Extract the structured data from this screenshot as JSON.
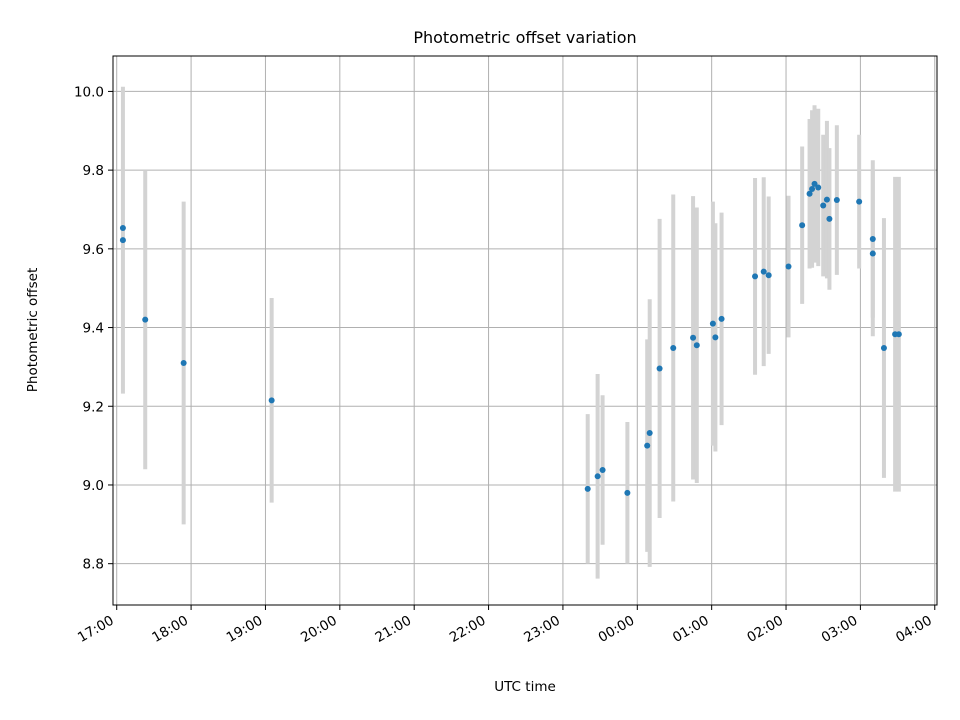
{
  "chart_data": {
    "type": "scatter",
    "title": "Photometric offset variation",
    "xlabel": "UTC time",
    "ylabel": "Photometric offset",
    "x_ticks": [
      "17:00",
      "18:00",
      "19:00",
      "20:00",
      "21:00",
      "22:00",
      "23:00",
      "00:00",
      "01:00",
      "02:00",
      "03:00",
      "04:00"
    ],
    "x_tick_hours": [
      17,
      18,
      19,
      20,
      21,
      22,
      23,
      24,
      25,
      26,
      27,
      28
    ],
    "xlim_hours": [
      16.95,
      28.03
    ],
    "y_ticks": [
      8.8,
      9.0,
      9.2,
      9.4,
      9.6,
      9.8,
      10.0
    ],
    "ylim": [
      8.695,
      10.09
    ],
    "grid": true,
    "point_color": "#1f77b4",
    "errorbar_color": "#d3d3d3",
    "points": [
      {
        "t": "17:05",
        "y": 9.653,
        "err": 0.0
      },
      {
        "t": "17:05",
        "y": 9.622,
        "err": 0.39
      },
      {
        "t": "17:23",
        "y": 9.42,
        "err": 0.38
      },
      {
        "t": "17:54",
        "y": 9.31,
        "err": 0.41
      },
      {
        "t": "19:05",
        "y": 9.215,
        "err": 0.26
      },
      {
        "t": "23:20",
        "y": 8.99,
        "err": 0.19
      },
      {
        "t": "23:28",
        "y": 9.022,
        "err": 0.26
      },
      {
        "t": "23:32",
        "y": 9.038,
        "err": 0.19
      },
      {
        "t": "23:52",
        "y": 8.98,
        "err": 0.18
      },
      {
        "t": "00:08",
        "y": 9.1,
        "err": 0.27
      },
      {
        "t": "00:10",
        "y": 9.132,
        "err": 0.34
      },
      {
        "t": "00:18",
        "y": 9.296,
        "err": 0.38
      },
      {
        "t": "00:29",
        "y": 9.348,
        "err": 0.39
      },
      {
        "t": "00:45",
        "y": 9.374,
        "err": 0.36
      },
      {
        "t": "00:48",
        "y": 9.355,
        "err": 0.35
      },
      {
        "t": "01:01",
        "y": 9.41,
        "err": 0.31
      },
      {
        "t": "01:03",
        "y": 9.375,
        "err": 0.29
      },
      {
        "t": "01:08",
        "y": 9.422,
        "err": 0.27
      },
      {
        "t": "01:35",
        "y": 9.53,
        "err": 0.25
      },
      {
        "t": "01:42",
        "y": 9.542,
        "err": 0.24
      },
      {
        "t": "01:46",
        "y": 9.533,
        "err": 0.2
      },
      {
        "t": "02:02",
        "y": 9.555,
        "err": 0.18
      },
      {
        "t": "02:13",
        "y": 9.66,
        "err": 0.2
      },
      {
        "t": "02:19",
        "y": 9.74,
        "err": 0.19
      },
      {
        "t": "02:21",
        "y": 9.752,
        "err": 0.2
      },
      {
        "t": "02:23",
        "y": 9.765,
        "err": 0.2
      },
      {
        "t": "02:26",
        "y": 9.756,
        "err": 0.2
      },
      {
        "t": "02:30",
        "y": 9.71,
        "err": 0.18
      },
      {
        "t": "02:33",
        "y": 9.725,
        "err": 0.2
      },
      {
        "t": "02:35",
        "y": 9.676,
        "err": 0.18
      },
      {
        "t": "02:41",
        "y": 9.724,
        "err": 0.19
      },
      {
        "t": "02:59",
        "y": 9.72,
        "err": 0.17
      },
      {
        "t": "03:10",
        "y": 9.625,
        "err": 0.2
      },
      {
        "t": "03:10",
        "y": 9.588,
        "err": 0.21
      },
      {
        "t": "03:19",
        "y": 9.348,
        "err": 0.33
      },
      {
        "t": "03:28",
        "y": 9.383,
        "err": 0.4
      },
      {
        "t": "03:31",
        "y": 9.383,
        "err": 0.4
      }
    ]
  }
}
